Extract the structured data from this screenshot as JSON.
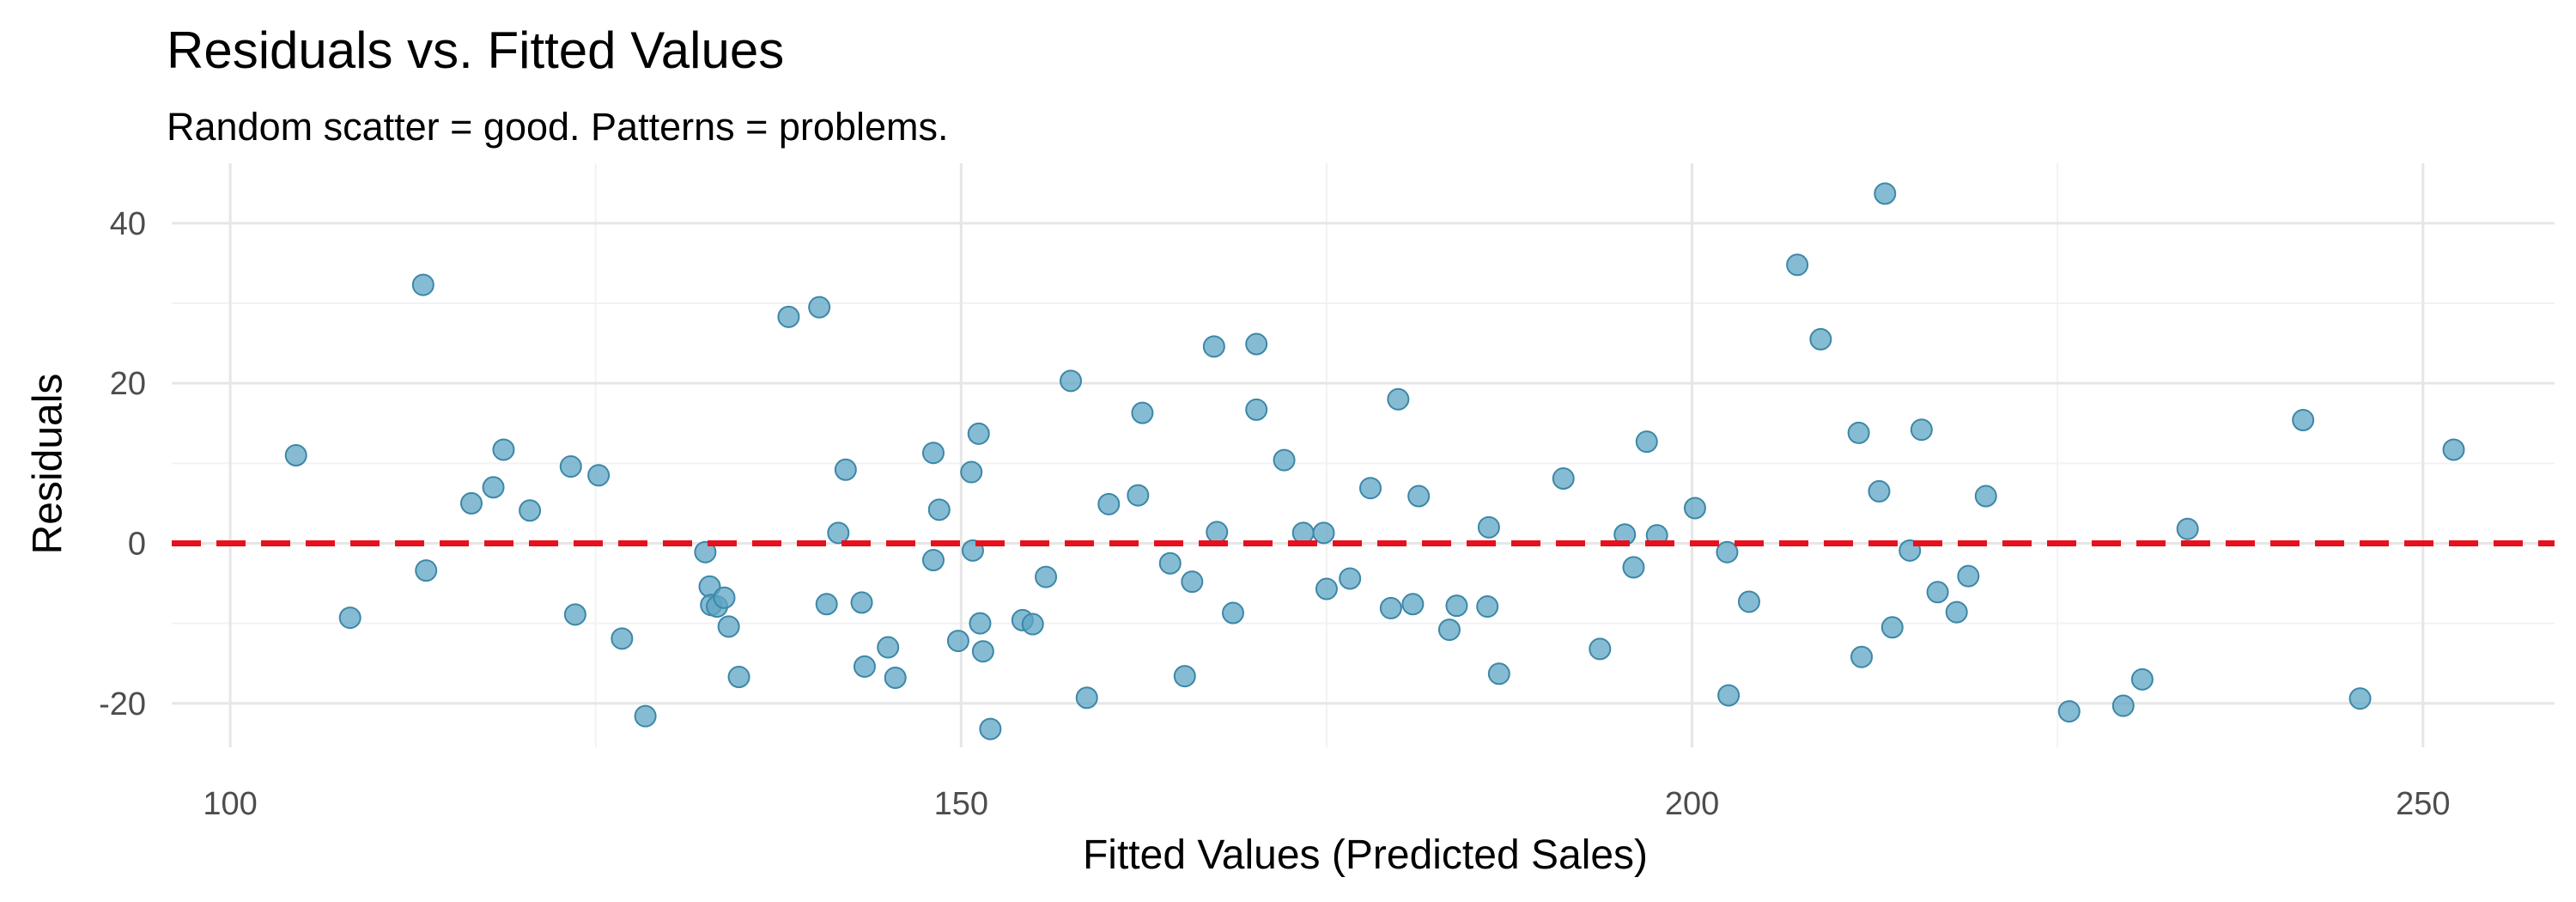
{
  "chart_data": {
    "type": "scatter",
    "title": "Residuals vs. Fitted Values",
    "subtitle": "Random scatter = good. Patterns = problems.",
    "xlabel": "Fitted Values (Predicted Sales)",
    "ylabel": "Residuals",
    "xlim": [
      96,
      259
    ],
    "ylim": [
      -25.5,
      47.5
    ],
    "x_ticks": [
      100,
      150,
      200,
      250
    ],
    "y_ticks": [
      -20,
      0,
      20,
      40
    ],
    "grid": true,
    "point_color": "#5ea5c4",
    "reference_line": {
      "y": 0,
      "color": "#e8101c",
      "style": "dashed"
    },
    "points": [
      {
        "x": 104.5,
        "y": 11
      },
      {
        "x": 108.2,
        "y": -9.3
      },
      {
        "x": 113.2,
        "y": 32.3
      },
      {
        "x": 113.4,
        "y": -3.4
      },
      {
        "x": 116.5,
        "y": 5
      },
      {
        "x": 118,
        "y": 7
      },
      {
        "x": 118.7,
        "y": 11.7
      },
      {
        "x": 120.5,
        "y": 4.1
      },
      {
        "x": 123.3,
        "y": 9.6
      },
      {
        "x": 123.6,
        "y": -8.9
      },
      {
        "x": 125.2,
        "y": 8.5
      },
      {
        "x": 126.8,
        "y": -11.9
      },
      {
        "x": 128.4,
        "y": -21.6
      },
      {
        "x": 132.5,
        "y": -1.1
      },
      {
        "x": 132.8,
        "y": -5.4
      },
      {
        "x": 132.9,
        "y": -7.7
      },
      {
        "x": 133.3,
        "y": -7.9
      },
      {
        "x": 133.8,
        "y": -6.8
      },
      {
        "x": 134.1,
        "y": -10.4
      },
      {
        "x": 134.8,
        "y": -16.7
      },
      {
        "x": 138.2,
        "y": 28.3
      },
      {
        "x": 140.3,
        "y": 29.5
      },
      {
        "x": 140.8,
        "y": -7.6
      },
      {
        "x": 141.6,
        "y": 1.3
      },
      {
        "x": 142.1,
        "y": 9.2
      },
      {
        "x": 143.2,
        "y": -7.4
      },
      {
        "x": 143.4,
        "y": -15.4
      },
      {
        "x": 145,
        "y": -13
      },
      {
        "x": 145.5,
        "y": -16.8
      },
      {
        "x": 148.1,
        "y": 11.3
      },
      {
        "x": 148.1,
        "y": -2.1
      },
      {
        "x": 148.5,
        "y": 4.2
      },
      {
        "x": 149.8,
        "y": -12.2
      },
      {
        "x": 150.7,
        "y": 8.9
      },
      {
        "x": 150.8,
        "y": -0.9
      },
      {
        "x": 151.2,
        "y": 13.7
      },
      {
        "x": 151.3,
        "y": -10
      },
      {
        "x": 151.5,
        "y": -13.5
      },
      {
        "x": 152,
        "y": -23.2
      },
      {
        "x": 154.2,
        "y": -9.6
      },
      {
        "x": 154.9,
        "y": -10.1
      },
      {
        "x": 155.8,
        "y": -4.2
      },
      {
        "x": 157.5,
        "y": 20.3
      },
      {
        "x": 158.6,
        "y": -19.3
      },
      {
        "x": 160.1,
        "y": 4.9
      },
      {
        "x": 162.1,
        "y": 6
      },
      {
        "x": 162.4,
        "y": 16.3
      },
      {
        "x": 164.3,
        "y": -2.5
      },
      {
        "x": 165.3,
        "y": -16.6
      },
      {
        "x": 165.8,
        "y": -4.8
      },
      {
        "x": 167.3,
        "y": 24.6
      },
      {
        "x": 167.5,
        "y": 1.4
      },
      {
        "x": 168.6,
        "y": -8.7
      },
      {
        "x": 170.2,
        "y": 24.9
      },
      {
        "x": 170.2,
        "y": 16.7
      },
      {
        "x": 172.1,
        "y": 10.4
      },
      {
        "x": 173.4,
        "y": 1.3
      },
      {
        "x": 174.8,
        "y": 1.3
      },
      {
        "x": 175,
        "y": -5.7
      },
      {
        "x": 176.6,
        "y": -4.4
      },
      {
        "x": 178,
        "y": 6.9
      },
      {
        "x": 179.4,
        "y": -8.1
      },
      {
        "x": 179.9,
        "y": 18
      },
      {
        "x": 180.9,
        "y": -7.6
      },
      {
        "x": 181.3,
        "y": 5.9
      },
      {
        "x": 183.4,
        "y": -10.8
      },
      {
        "x": 183.9,
        "y": -7.8
      },
      {
        "x": 186,
        "y": -7.9
      },
      {
        "x": 186.1,
        "y": 2
      },
      {
        "x": 186.8,
        "y": -16.3
      },
      {
        "x": 191.2,
        "y": 8.1
      },
      {
        "x": 193.7,
        "y": -13.2
      },
      {
        "x": 195.4,
        "y": 1.1
      },
      {
        "x": 196,
        "y": -3
      },
      {
        "x": 196.9,
        "y": 12.7
      },
      {
        "x": 197.6,
        "y": 1
      },
      {
        "x": 200.2,
        "y": 4.4
      },
      {
        "x": 202.4,
        "y": -1.1
      },
      {
        "x": 202.5,
        "y": -19
      },
      {
        "x": 203.9,
        "y": -7.3
      },
      {
        "x": 207.2,
        "y": 34.8
      },
      {
        "x": 208.8,
        "y": 25.5
      },
      {
        "x": 211.4,
        "y": 13.8
      },
      {
        "x": 211.6,
        "y": -14.2
      },
      {
        "x": 212.8,
        "y": 6.5
      },
      {
        "x": 213.2,
        "y": 43.7
      },
      {
        "x": 213.7,
        "y": -10.5
      },
      {
        "x": 214.9,
        "y": -0.9
      },
      {
        "x": 215.7,
        "y": 14.2
      },
      {
        "x": 216.8,
        "y": -6.1
      },
      {
        "x": 218.1,
        "y": -8.6
      },
      {
        "x": 218.9,
        "y": -4.1
      },
      {
        "x": 220.1,
        "y": 5.9
      },
      {
        "x": 225.8,
        "y": -21
      },
      {
        "x": 229.5,
        "y": -20.3
      },
      {
        "x": 230.8,
        "y": -17
      },
      {
        "x": 233.9,
        "y": 1.8
      },
      {
        "x": 241.8,
        "y": 15.4
      },
      {
        "x": 245.7,
        "y": -19.4
      },
      {
        "x": 252.1,
        "y": 11.7
      }
    ]
  }
}
